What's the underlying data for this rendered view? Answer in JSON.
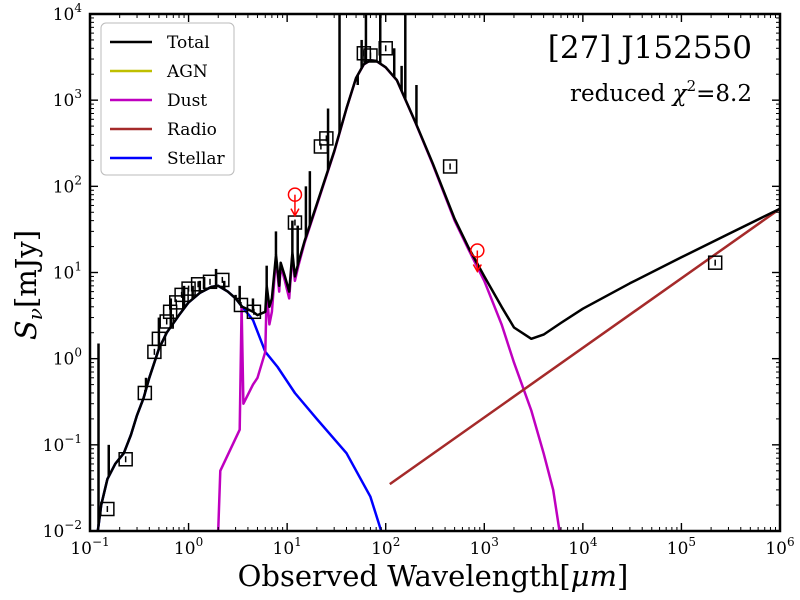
{
  "chart_data": {
    "type": "line",
    "scale": "log-log",
    "title": "",
    "xlabel_base": "Observed Wavelength[",
    "xlabel_unit": "μm",
    "xlabel_end": "]",
    "ylabel_main": "S",
    "ylabel_sub": "ν",
    "ylabel_unit": "[mJy]",
    "xlim": [
      0.1,
      1000000
    ],
    "ylim": [
      0.01,
      10000
    ],
    "x_ticks": [
      {
        "v": 0.1,
        "base": "10",
        "exp": "−1"
      },
      {
        "v": 1,
        "base": "10",
        "exp": "0"
      },
      {
        "v": 10,
        "base": "10",
        "exp": "1"
      },
      {
        "v": 100,
        "base": "10",
        "exp": "2"
      },
      {
        "v": 1000,
        "base": "10",
        "exp": "3"
      },
      {
        "v": 10000,
        "base": "10",
        "exp": "4"
      },
      {
        "v": 100000,
        "base": "10",
        "exp": "5"
      },
      {
        "v": 1000000,
        "base": "10",
        "exp": "6"
      }
    ],
    "y_ticks": [
      {
        "v": 0.01,
        "base": "10",
        "exp": "−2"
      },
      {
        "v": 0.1,
        "base": "10",
        "exp": "−1"
      },
      {
        "v": 1,
        "base": "10",
        "exp": "0"
      },
      {
        "v": 10,
        "base": "10",
        "exp": "1"
      },
      {
        "v": 100,
        "base": "10",
        "exp": "2"
      },
      {
        "v": 1000,
        "base": "10",
        "exp": "3"
      },
      {
        "v": 10000,
        "base": "10",
        "exp": "4"
      }
    ],
    "annotation": {
      "title": "[27] J152550",
      "chi_label": "reduced ",
      "chi_symbol": "χ",
      "chi_exp": "2",
      "chi_value": "=8.2"
    },
    "legend_position": "top-left",
    "legend": [
      {
        "name": "Total",
        "color": "#000000"
      },
      {
        "name": "AGN",
        "color": "#bfbf00"
      },
      {
        "name": "Dust",
        "color": "#bf00bf"
      },
      {
        "name": "Radio",
        "color": "#a52a2a"
      },
      {
        "name": "Stellar",
        "color": "#0000ff"
      }
    ],
    "series": [
      {
        "name": "Stellar",
        "color": "#0000ff",
        "points": [
          [
            0.12,
            0.01
          ],
          [
            0.13,
            0.02
          ],
          [
            0.15,
            0.04
          ],
          [
            0.18,
            0.06
          ],
          [
            0.22,
            0.08
          ],
          [
            0.26,
            0.13
          ],
          [
            0.3,
            0.22
          ],
          [
            0.35,
            0.35
          ],
          [
            0.4,
            0.6
          ],
          [
            0.5,
            1.3
          ],
          [
            0.6,
            2.0
          ],
          [
            0.8,
            3.2
          ],
          [
            1.0,
            4.5
          ],
          [
            1.3,
            5.8
          ],
          [
            1.7,
            6.8
          ],
          [
            2.0,
            7.0
          ],
          [
            2.5,
            6.0
          ],
          [
            3.0,
            5.0
          ],
          [
            3.5,
            4.0
          ],
          [
            4.5,
            2.8
          ],
          [
            6.0,
            1.2
          ],
          [
            8.0,
            0.8
          ],
          [
            12,
            0.4
          ],
          [
            20,
            0.2
          ],
          [
            40,
            0.08
          ],
          [
            70,
            0.025
          ],
          [
            90,
            0.01
          ]
        ]
      },
      {
        "name": "Dust",
        "color": "#bf00bf",
        "points": [
          [
            2.0,
            0.01
          ],
          [
            2.1,
            0.05
          ],
          [
            3.3,
            0.15
          ],
          [
            3.45,
            4.0
          ],
          [
            3.6,
            0.3
          ],
          [
            4.5,
            0.5
          ],
          [
            5.0,
            0.6
          ],
          [
            6.0,
            1.2
          ],
          [
            6.2,
            6.0
          ],
          [
            6.6,
            2.5
          ],
          [
            7.0,
            3.5
          ],
          [
            7.7,
            15
          ],
          [
            8.3,
            6.0
          ],
          [
            8.6,
            12
          ],
          [
            9.5,
            8.0
          ],
          [
            10.5,
            5.0
          ],
          [
            11.3,
            16
          ],
          [
            12.0,
            8.0
          ],
          [
            13.0,
            12
          ],
          [
            15,
            22
          ],
          [
            20,
            60
          ],
          [
            30,
            250
          ],
          [
            40,
            800
          ],
          [
            50,
            1800
          ],
          [
            60,
            2600
          ],
          [
            70,
            2900
          ],
          [
            80,
            2850
          ],
          [
            100,
            2400
          ],
          [
            130,
            1700
          ],
          [
            200,
            550
          ],
          [
            300,
            180
          ],
          [
            500,
            40
          ],
          [
            700,
            18
          ],
          [
            1000,
            8
          ],
          [
            1500,
            2.5
          ],
          [
            2000,
            0.9
          ],
          [
            3000,
            0.25
          ],
          [
            4000,
            0.08
          ],
          [
            5000,
            0.03
          ],
          [
            5800,
            0.01
          ]
        ]
      },
      {
        "name": "Radio",
        "color": "#a52a2a",
        "points": [
          [
            110,
            0.035
          ],
          [
            1000000,
            55
          ]
        ]
      },
      {
        "name": "Total",
        "color": "#000000",
        "points": [
          [
            0.12,
            0.01
          ],
          [
            0.13,
            0.02
          ],
          [
            0.15,
            0.04
          ],
          [
            0.18,
            0.06
          ],
          [
            0.22,
            0.08
          ],
          [
            0.26,
            0.13
          ],
          [
            0.3,
            0.22
          ],
          [
            0.35,
            0.35
          ],
          [
            0.4,
            0.6
          ],
          [
            0.5,
            1.3
          ],
          [
            0.6,
            2.0
          ],
          [
            0.8,
            3.2
          ],
          [
            1.0,
            4.5
          ],
          [
            1.3,
            5.8
          ],
          [
            1.7,
            6.8
          ],
          [
            2.0,
            7.0
          ],
          [
            2.5,
            6.0
          ],
          [
            3.0,
            5.0
          ],
          [
            3.5,
            4.0
          ],
          [
            4.5,
            3.5
          ],
          [
            5.0,
            3.2
          ],
          [
            6.0,
            3.5
          ],
          [
            6.2,
            7.0
          ],
          [
            6.6,
            4.0
          ],
          [
            7.0,
            5.0
          ],
          [
            7.7,
            16
          ],
          [
            8.3,
            7.0
          ],
          [
            8.6,
            13
          ],
          [
            9.5,
            9.0
          ],
          [
            10.5,
            6.0
          ],
          [
            11.3,
            17
          ],
          [
            12.0,
            9.0
          ],
          [
            13.0,
            13
          ],
          [
            15,
            23
          ],
          [
            20,
            62
          ],
          [
            30,
            255
          ],
          [
            40,
            805
          ],
          [
            50,
            1805
          ],
          [
            60,
            2605
          ],
          [
            70,
            2905
          ],
          [
            80,
            2855
          ],
          [
            100,
            2405
          ],
          [
            130,
            1705
          ],
          [
            200,
            555
          ],
          [
            300,
            185
          ],
          [
            500,
            42
          ],
          [
            700,
            19
          ],
          [
            1000,
            9
          ],
          [
            1500,
            4
          ],
          [
            2000,
            2.3
          ],
          [
            3000,
            1.7
          ],
          [
            4000,
            1.9
          ],
          [
            6000,
            2.6
          ],
          [
            10000,
            3.8
          ],
          [
            30000,
            7.5
          ],
          [
            100000,
            15
          ],
          [
            300000,
            28
          ],
          [
            1000000,
            55
          ]
        ]
      },
      {
        "name": "Total-lines",
        "color": "#000000",
        "spikes": [
          [
            0.122,
            1.5
          ],
          [
            0.155,
            0.1
          ],
          [
            0.37,
            0.6
          ],
          [
            0.5,
            3.0
          ],
          [
            0.66,
            5.0
          ],
          [
            0.9,
            7.0
          ],
          [
            1.1,
            7.0
          ],
          [
            1.3,
            8.0
          ],
          [
            1.9,
            11
          ],
          [
            2.3,
            8.0
          ],
          [
            3.0,
            5.5
          ],
          [
            3.3,
            7.0
          ],
          [
            4.5,
            5.0
          ],
          [
            6.2,
            12
          ],
          [
            7.7,
            30
          ],
          [
            11.3,
            40
          ],
          [
            12.8,
            35
          ],
          [
            15.5,
            100
          ],
          [
            17,
            150
          ],
          [
            26,
            800
          ],
          [
            34,
            10000
          ],
          [
            52,
            1500
          ],
          [
            57,
            5000
          ],
          [
            63,
            10000
          ],
          [
            88,
            10000
          ],
          [
            122,
            4000
          ],
          [
            145,
            2500
          ],
          [
            158,
            10000
          ],
          [
            205,
            1500
          ]
        ]
      }
    ],
    "photometry": [
      {
        "x": 0.15,
        "y": 0.018
      },
      {
        "x": 0.23,
        "y": 0.068
      },
      {
        "x": 0.36,
        "y": 0.4
      },
      {
        "x": 0.45,
        "y": 1.2
      },
      {
        "x": 0.5,
        "y": 1.7
      },
      {
        "x": 0.6,
        "y": 2.7
      },
      {
        "x": 0.65,
        "y": 3.5
      },
      {
        "x": 0.75,
        "y": 4.5
      },
      {
        "x": 0.85,
        "y": 5.5
      },
      {
        "x": 1.0,
        "y": 6.5
      },
      {
        "x": 1.25,
        "y": 7.3
      },
      {
        "x": 1.65,
        "y": 7.8
      },
      {
        "x": 2.2,
        "y": 8.2
      },
      {
        "x": 3.4,
        "y": 4.2
      },
      {
        "x": 4.6,
        "y": 3.5
      },
      {
        "x": 12,
        "y": 38
      },
      {
        "x": 22,
        "y": 290
      },
      {
        "x": 25,
        "y": 360
      },
      {
        "x": 60,
        "y": 3500
      },
      {
        "x": 70,
        "y": 3300
      },
      {
        "x": 100,
        "y": 4000
      },
      {
        "x": 450,
        "y": 170
      },
      {
        "x": 220000,
        "y": 13
      }
    ],
    "upper_limits": [
      {
        "x": 12,
        "y": 80
      },
      {
        "x": 850,
        "y": 18
      }
    ]
  }
}
